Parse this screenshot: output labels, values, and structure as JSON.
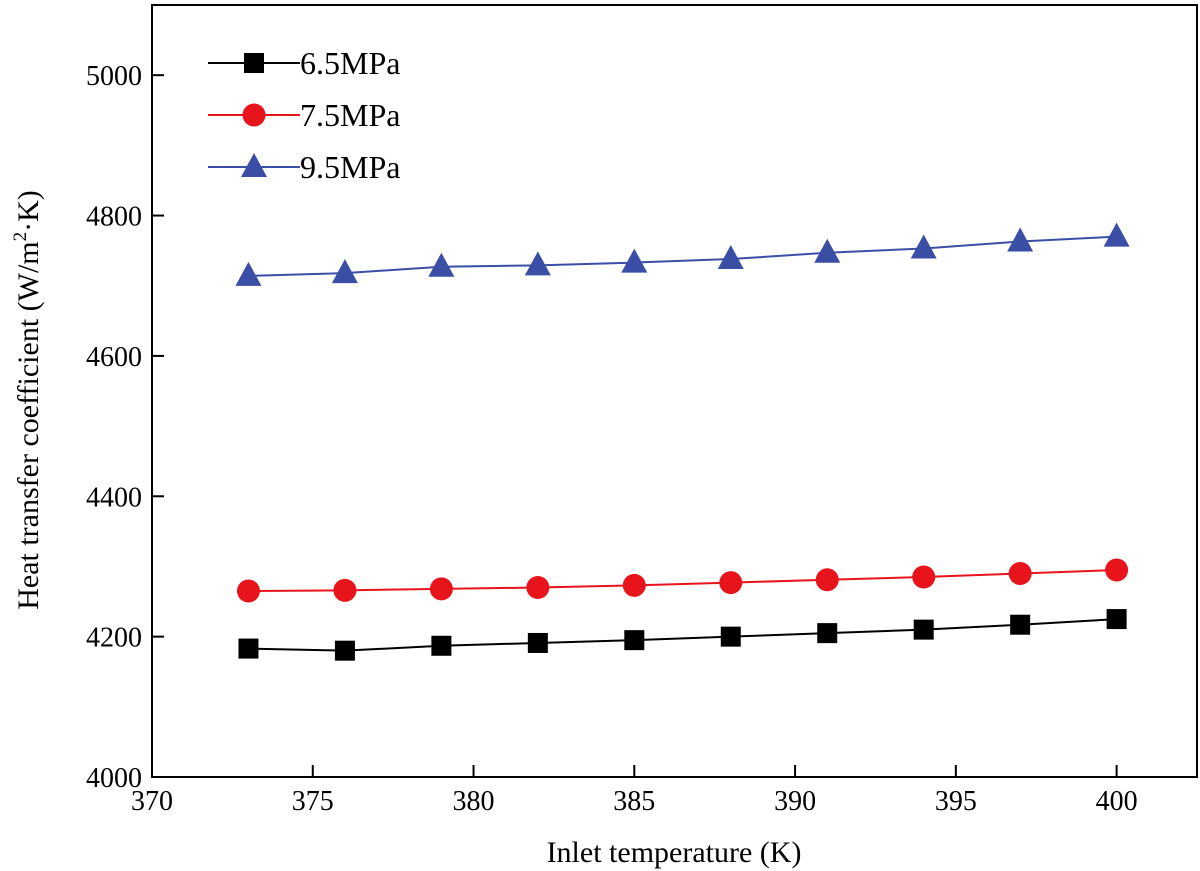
{
  "chart_data": {
    "type": "line",
    "xlabel": "Inlet temperature (K)",
    "ylabel_main": "Heat transfer coefficient (W/m",
    "ylabel_sup": "2",
    "ylabel_end": "·K)",
    "xlim": [
      370,
      402.5
    ],
    "ylim": [
      4000,
      5100
    ],
    "xticks": [
      370,
      375,
      380,
      385,
      390,
      395,
      400
    ],
    "yticks": [
      4000,
      4200,
      4400,
      4600,
      4800,
      5000
    ],
    "legend_position": "top-left",
    "x": [
      373,
      376,
      379,
      382,
      385,
      388,
      391,
      394,
      397,
      400
    ],
    "series": [
      {
        "name": "6.5MPa",
        "color": "#000000",
        "marker": "square",
        "values": [
          4183,
          4180,
          4187,
          4191,
          4195,
          4200,
          4205,
          4210,
          4217,
          4225
        ]
      },
      {
        "name": "7.5MPa",
        "color": "#e8141c",
        "marker": "circle",
        "values": [
          4265,
          4266,
          4268,
          4270,
          4273,
          4277,
          4281,
          4285,
          4290,
          4295
        ]
      },
      {
        "name": "9.5MPa",
        "color": "#3a4ea6",
        "marker": "triangle",
        "values": [
          4714,
          4718,
          4727,
          4729,
          4733,
          4738,
          4747,
          4753,
          4763,
          4770
        ]
      }
    ]
  }
}
